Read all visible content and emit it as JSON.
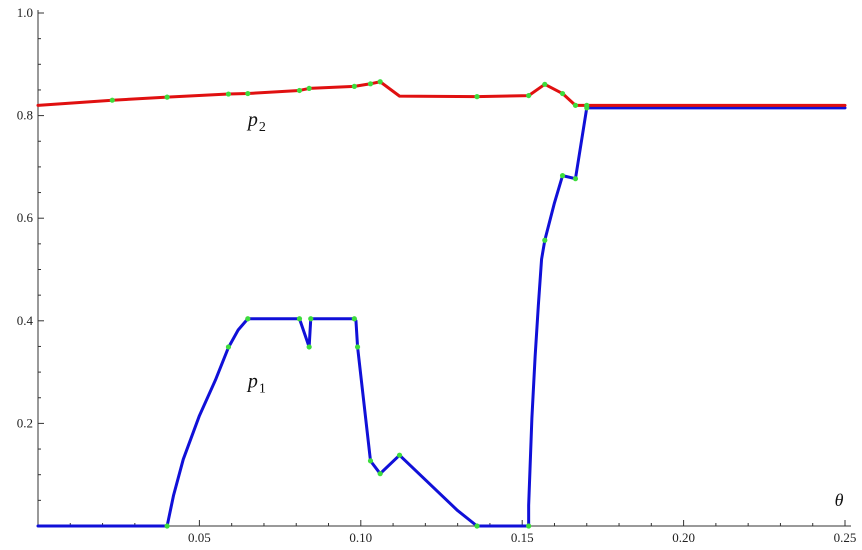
{
  "chart_data": {
    "type": "line",
    "title": "",
    "xlabel": "θ",
    "ylabel": "",
    "xlim": [
      0.0,
      0.25
    ],
    "ylim": [
      0.0,
      1.0
    ],
    "grid": false,
    "x_ticks": [
      {
        "value": 0.05,
        "label": "0.05"
      },
      {
        "value": 0.1,
        "label": "0.10"
      },
      {
        "value": 0.15,
        "label": "0.15"
      },
      {
        "value": 0.2,
        "label": "0.20"
      },
      {
        "value": 0.25,
        "label": "0.25"
      }
    ],
    "y_ticks": [
      {
        "value": 0.2,
        "label": "0.2"
      },
      {
        "value": 0.4,
        "label": "0.4"
      },
      {
        "value": 0.6,
        "label": "0.6"
      },
      {
        "value": 0.8,
        "label": "0.8"
      },
      {
        "value": 1.0,
        "label": "1.0"
      }
    ],
    "series": [
      {
        "name": "p",
        "subscript": "1",
        "color": "#1010d8",
        "x": [
          0.0,
          0.04,
          0.042,
          0.045,
          0.05,
          0.055,
          0.059,
          0.062,
          0.065,
          0.081,
          0.084,
          0.0845,
          0.098,
          0.0985,
          0.099,
          0.103,
          0.106,
          0.112,
          0.12,
          0.13,
          0.136,
          0.152,
          0.152,
          0.153,
          0.154,
          0.155,
          0.156,
          0.157,
          0.16,
          0.1625,
          0.1665,
          0.17,
          0.25
        ],
        "y": [
          0.0,
          0.0,
          0.06,
          0.13,
          0.215,
          0.285,
          0.348,
          0.382,
          0.404,
          0.404,
          0.349,
          0.404,
          0.404,
          0.4,
          0.349,
          0.127,
          0.102,
          0.138,
          0.09,
          0.03,
          0.0,
          0.0,
          0.04,
          0.21,
          0.33,
          0.43,
          0.52,
          0.557,
          0.63,
          0.683,
          0.677,
          0.815,
          0.815
        ],
        "points_x": [
          0.04,
          0.059,
          0.065,
          0.081,
          0.084,
          0.0845,
          0.098,
          0.099,
          0.103,
          0.106,
          0.112,
          0.136,
          0.152,
          0.157,
          0.1625,
          0.1665,
          0.17
        ],
        "points_y": [
          0.0,
          0.349,
          0.404,
          0.404,
          0.349,
          0.404,
          0.404,
          0.349,
          0.127,
          0.102,
          0.138,
          0.0,
          0.0,
          0.557,
          0.683,
          0.677,
          0.815
        ],
        "label_at": [
          0.065,
          0.27
        ]
      },
      {
        "name": "p",
        "subscript": "2",
        "color": "#e01010",
        "x": [
          0.0,
          0.023,
          0.04,
          0.059,
          0.065,
          0.081,
          0.084,
          0.098,
          0.103,
          0.106,
          0.112,
          0.136,
          0.152,
          0.157,
          0.1625,
          0.1665,
          0.17,
          0.25
        ],
        "y": [
          0.82,
          0.83,
          0.836,
          0.842,
          0.843,
          0.849,
          0.853,
          0.857,
          0.862,
          0.866,
          0.838,
          0.837,
          0.839,
          0.861,
          0.843,
          0.82,
          0.82,
          0.82
        ],
        "points_x": [
          0.023,
          0.04,
          0.059,
          0.065,
          0.081,
          0.084,
          0.098,
          0.103,
          0.106,
          0.136,
          0.152,
          0.157,
          0.1625,
          0.1665,
          0.17
        ],
        "points_y": [
          0.83,
          0.836,
          0.842,
          0.843,
          0.849,
          0.853,
          0.857,
          0.862,
          0.866,
          0.837,
          0.839,
          0.861,
          0.843,
          0.82,
          0.82
        ],
        "label_at": [
          0.065,
          0.78
        ]
      }
    ],
    "point_color": "#3ddc3d"
  }
}
